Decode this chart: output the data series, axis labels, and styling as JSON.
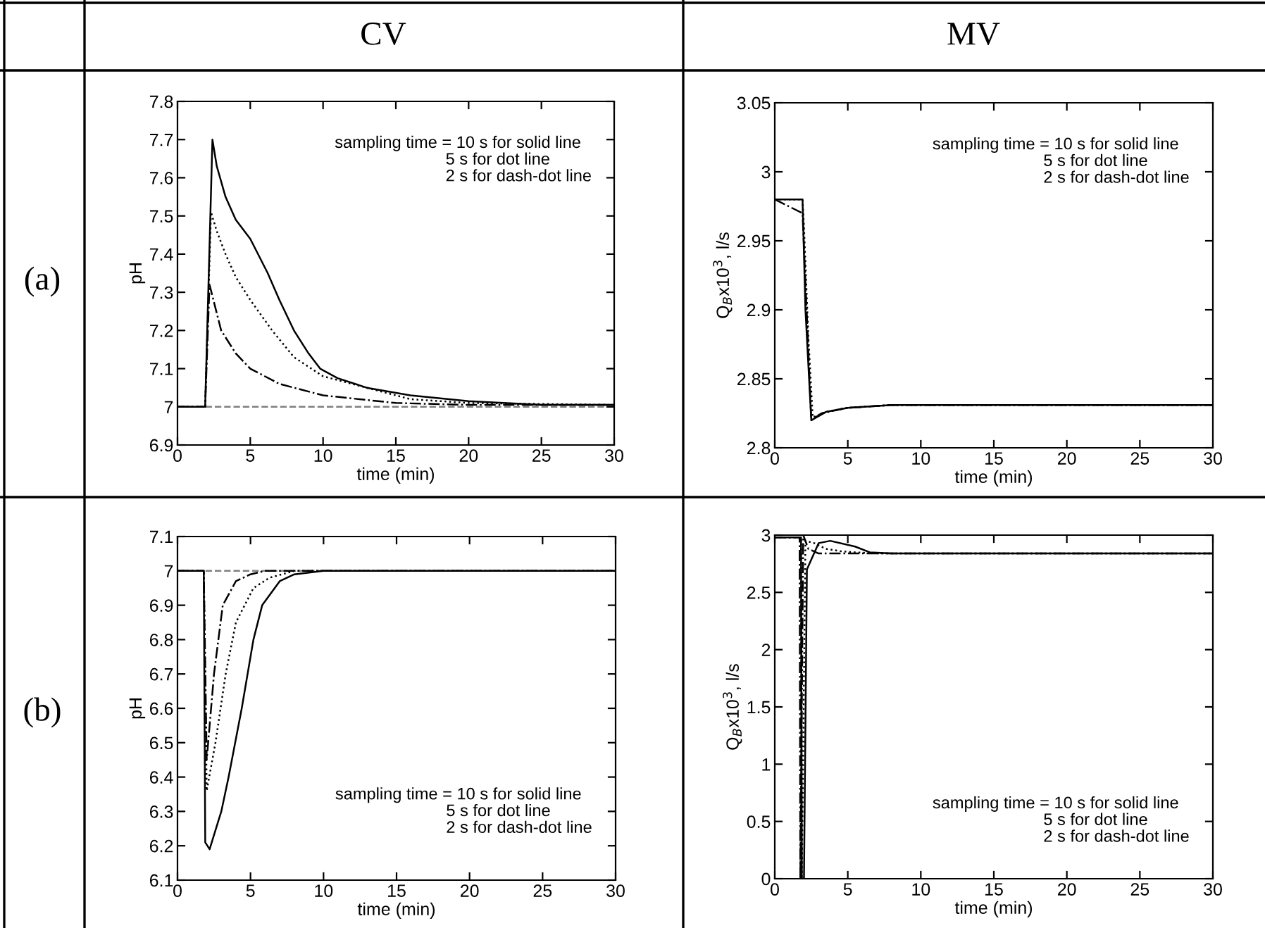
{
  "chart_data": [
    {
      "type": "line",
      "title": "CV",
      "xlabel": "time (min)",
      "ylabel": "pH",
      "annotations": [
        "(a)",
        "sampling time = 10 s for solid line\n                        5 s for dot line\n                        2 s for dash-dot line"
      ],
      "xlim": [
        0,
        30
      ],
      "xticks": [
        0,
        5,
        10,
        15,
        20,
        25,
        30
      ],
      "ylim": [
        6.9,
        7.8
      ],
      "yticks": [
        6.9,
        7,
        7.1,
        7.2,
        7.3,
        7.4,
        7.5,
        7.6,
        7.7,
        7.8
      ],
      "grid": false,
      "ref_lines": [
        {
          "axis": "y",
          "value": 7,
          "label": null,
          "color": "#808080",
          "line_style": "dashed"
        }
      ],
      "series": [
        {
          "color": "#000000",
          "line_style": "solid",
          "x": [
            0,
            1.9,
            2.4,
            2.7,
            3.3,
            4,
            5,
            6.2,
            7,
            8,
            9,
            9.8,
            11,
            13,
            16,
            20,
            25,
            30
          ],
          "values": [
            7,
            7,
            7.7,
            7.63,
            7.55,
            7.49,
            7.44,
            7.35,
            7.28,
            7.2,
            7.14,
            7.1,
            7.075,
            7.05,
            7.03,
            7.015,
            7.005,
            7.005
          ]
        },
        {
          "color": "#000000",
          "line_style": "dotted",
          "x": [
            0,
            1.9,
            2.3,
            2.7,
            3.3,
            4,
            5,
            6.5,
            8,
            10,
            13,
            16,
            20,
            30
          ],
          "values": [
            7,
            7,
            7.51,
            7.46,
            7.4,
            7.34,
            7.28,
            7.2,
            7.13,
            7.08,
            7.05,
            7.02,
            7.01,
            7.005
          ]
        },
        {
          "color": "#000000",
          "line_style": "dashdot",
          "x": [
            0,
            1.9,
            2.2,
            3,
            4,
            5,
            7,
            10,
            15,
            20,
            30
          ],
          "values": [
            7,
            7,
            7.32,
            7.2,
            7.14,
            7.1,
            7.06,
            7.03,
            7.01,
            7.005,
            7.005
          ]
        }
      ]
    },
    {
      "type": "line",
      "title": "MV",
      "xlabel": "time (min)",
      "ylabel": "Q$_{B}$x10$^{3}$, l/s",
      "annotations": [
        "sampling time = 10 s for solid line\n                        5 s for dot line\n                        2 s for dash-dot line"
      ],
      "xlim": [
        0,
        30
      ],
      "xticks": [
        0,
        5,
        10,
        15,
        20,
        25,
        30
      ],
      "ylim": [
        2.8,
        3.05
      ],
      "yticks": [
        2.8,
        2.85,
        2.9,
        2.95,
        3,
        3.05
      ],
      "grid": false,
      "series": [
        {
          "color": "#000000",
          "line_style": "solid",
          "x": [
            0,
            1.9,
            2.1,
            2.5,
            3.5,
            5,
            8,
            30
          ],
          "values": [
            2.98,
            2.98,
            2.9,
            2.82,
            2.826,
            2.829,
            2.831,
            2.831
          ]
        },
        {
          "color": "#000000",
          "line_style": "dotted",
          "x": [
            0,
            1.9,
            2.0,
            2.3,
            2.6,
            3.5,
            5,
            8,
            30
          ],
          "values": [
            2.98,
            2.98,
            2.96,
            2.88,
            2.822,
            2.826,
            2.829,
            2.831,
            2.831
          ]
        },
        {
          "color": "#000000",
          "line_style": "dashdot",
          "x": [
            0,
            1.9,
            2.1,
            2.5,
            3.2,
            5,
            8,
            30
          ],
          "values": [
            2.98,
            2.97,
            2.92,
            2.82,
            2.825,
            2.829,
            2.831,
            2.831
          ]
        }
      ]
    },
    {
      "type": "line",
      "xlabel": "time (min)",
      "ylabel": "pH",
      "annotations": [
        "(b)",
        "sampling time = 10 s for solid line\n                        5 s for dot line\n                        2 s for dash-dot line"
      ],
      "xlim": [
        0,
        30
      ],
      "xticks": [
        0,
        5,
        10,
        15,
        20,
        25,
        30
      ],
      "ylim": [
        6.1,
        7.1
      ],
      "yticks": [
        6.1,
        6.2,
        6.3,
        6.4,
        6.5,
        6.6,
        6.7,
        6.8,
        6.9,
        7,
        7.1
      ],
      "grid": false,
      "ref_lines": [
        {
          "axis": "y",
          "value": 7,
          "label": null,
          "color": "#808080",
          "line_style": "dashed"
        }
      ],
      "series": [
        {
          "color": "#000000",
          "line_style": "solid",
          "x": [
            0,
            1.8,
            1.9,
            2.2,
            3,
            3.5,
            4.4,
            5.2,
            5.8,
            7,
            8,
            10,
            30
          ],
          "values": [
            7,
            7,
            6.21,
            6.19,
            6.3,
            6.4,
            6.6,
            6.8,
            6.9,
            6.97,
            6.99,
            7,
            7
          ]
        },
        {
          "color": "#000000",
          "line_style": "dotted",
          "x": [
            0,
            1.8,
            2.0,
            2.6,
            3.3,
            4,
            5.2,
            6.3,
            8,
            30
          ],
          "values": [
            7,
            7,
            6.36,
            6.5,
            6.7,
            6.85,
            6.95,
            6.98,
            7,
            7
          ]
        },
        {
          "color": "#000000",
          "line_style": "dashdot",
          "x": [
            0,
            1.8,
            2.0,
            2.5,
            3.1,
            4,
            5,
            6,
            30
          ],
          "values": [
            7,
            7,
            6.45,
            6.7,
            6.9,
            6.97,
            6.99,
            7,
            7
          ]
        }
      ]
    },
    {
      "type": "line",
      "xlabel": "time (min)",
      "ylabel": "Q$_{B}$x10$^{3}$, l/s",
      "annotations": [
        "sampling time = 10 s for solid line\n                        5 s for dot line\n                        2 s for dash-dot line"
      ],
      "xlim": [
        0,
        30
      ],
      "xticks": [
        0,
        5,
        10,
        15,
        20,
        25,
        30
      ],
      "ylim": [
        0,
        3
      ],
      "yticks": [
        0,
        0.5,
        1,
        1.5,
        2,
        2.5,
        3
      ],
      "grid": false,
      "series": [
        {
          "color": "#000000",
          "line_style": "solid",
          "x": [
            0,
            1.8,
            1.85,
            2.0,
            2.2,
            3,
            3.8,
            5.5,
            6.5,
            8,
            30
          ],
          "values": [
            2.98,
            2.98,
            0,
            0,
            2.7,
            2.93,
            2.95,
            2.9,
            2.85,
            2.84,
            2.84
          ]
        },
        {
          "color": "#000000",
          "line_style": "dotted",
          "x": [
            0,
            1.8,
            1.85,
            2.1,
            2.7,
            3.5,
            4.5,
            5.5,
            7,
            30
          ],
          "values": [
            2.98,
            2.98,
            0,
            2.95,
            2.93,
            2.88,
            2.86,
            2.85,
            2.84,
            2.84
          ]
        },
        {
          "color": "#000000",
          "line_style": "dashdot",
          "x": [
            0,
            1.7,
            1.75,
            1.95,
            2.3,
            3,
            30
          ],
          "values": [
            2.98,
            2.98,
            0,
            3.0,
            2.88,
            2.84,
            2.84
          ]
        }
      ]
    }
  ]
}
